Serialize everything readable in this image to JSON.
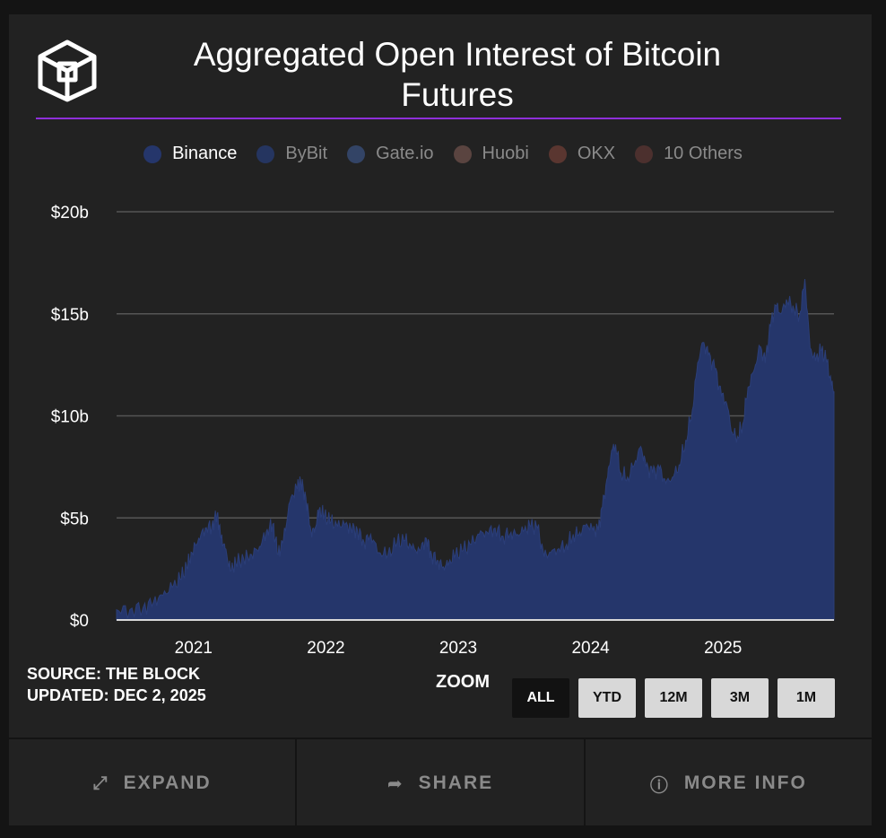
{
  "header": {
    "title_line1": "Aggregated Open Interest of Bitcoin",
    "title_line2": "Futures"
  },
  "legend": [
    {
      "label": "Binance",
      "color": "#25366b",
      "text_color": "#ffffff"
    },
    {
      "label": "ByBit",
      "color": "#253560",
      "text_color": "#8a8a8a"
    },
    {
      "label": "Gate.io",
      "color": "#334466",
      "text_color": "#8a8a8a"
    },
    {
      "label": "Huobi",
      "color": "#5a4440",
      "text_color": "#8a8a8a"
    },
    {
      "label": "OKX",
      "color": "#5a3630",
      "text_color": "#8a8a8a"
    },
    {
      "label": "10 Others",
      "color": "#4c302e",
      "text_color": "#8a8a8a"
    }
  ],
  "chart_data": {
    "type": "area",
    "title": "Aggregated Open Interest of Bitcoin Futures",
    "series_name": "Binance",
    "series_color": "#25366b",
    "y_ticks": [
      "$0",
      "$5b",
      "$10b",
      "$15b",
      "$20b"
    ],
    "ylim": [
      0,
      20
    ],
    "y_unit": "billions USD",
    "x_ticks": [
      "2021",
      "2022",
      "2023",
      "2024",
      "2025"
    ],
    "x_tick_values": [
      2021.0,
      2022.0,
      2023.0,
      2024.0,
      2025.0
    ],
    "xlim": [
      2020.5,
      2025.92
    ],
    "grid": true,
    "points": [
      [
        2020.5,
        0.5
      ],
      [
        2020.6,
        0.5
      ],
      [
        2020.7,
        0.6
      ],
      [
        2020.78,
        0.9
      ],
      [
        2020.85,
        1.2
      ],
      [
        2020.92,
        1.6
      ],
      [
        2020.98,
        2.0
      ],
      [
        2021.03,
        2.6
      ],
      [
        2021.07,
        3.3
      ],
      [
        2021.12,
        4.0
      ],
      [
        2021.17,
        4.5
      ],
      [
        2021.22,
        4.6
      ],
      [
        2021.26,
        5.2
      ],
      [
        2021.29,
        4.0
      ],
      [
        2021.32,
        3.5
      ],
      [
        2021.36,
        2.4
      ],
      [
        2021.4,
        2.8
      ],
      [
        2021.46,
        3.0
      ],
      [
        2021.52,
        3.2
      ],
      [
        2021.58,
        3.6
      ],
      [
        2021.63,
        4.3
      ],
      [
        2021.68,
        4.7
      ],
      [
        2021.72,
        3.2
      ],
      [
        2021.76,
        3.9
      ],
      [
        2021.81,
        5.8
      ],
      [
        2021.86,
        6.5
      ],
      [
        2021.89,
        6.8
      ],
      [
        2021.93,
        6.0
      ],
      [
        2021.97,
        4.3
      ],
      [
        2022.0,
        4.5
      ],
      [
        2022.03,
        5.4
      ],
      [
        2022.07,
        5.1
      ],
      [
        2022.12,
        4.8
      ],
      [
        2022.17,
        4.6
      ],
      [
        2022.22,
        4.7
      ],
      [
        2022.27,
        4.5
      ],
      [
        2022.32,
        4.4
      ],
      [
        2022.37,
        3.8
      ],
      [
        2022.42,
        4.2
      ],
      [
        2022.48,
        3.3
      ],
      [
        2022.55,
        3.2
      ],
      [
        2022.62,
        3.8
      ],
      [
        2022.68,
        3.9
      ],
      [
        2022.73,
        3.5
      ],
      [
        2022.79,
        3.4
      ],
      [
        2022.84,
        4.0
      ],
      [
        2022.88,
        3.2
      ],
      [
        2022.93,
        2.9
      ],
      [
        2022.97,
        2.6
      ],
      [
        2023.01,
        2.8
      ],
      [
        2023.06,
        3.2
      ],
      [
        2023.12,
        3.4
      ],
      [
        2023.18,
        3.7
      ],
      [
        2023.24,
        4.2
      ],
      [
        2023.3,
        4.3
      ],
      [
        2023.36,
        4.5
      ],
      [
        2023.42,
        4.1
      ],
      [
        2023.48,
        4.3
      ],
      [
        2023.53,
        4.2
      ],
      [
        2023.58,
        4.4
      ],
      [
        2023.63,
        4.6
      ],
      [
        2023.68,
        4.5
      ],
      [
        2023.73,
        3.1
      ],
      [
        2023.78,
        3.3
      ],
      [
        2023.84,
        3.5
      ],
      [
        2023.9,
        3.7
      ],
      [
        2023.95,
        4.2
      ],
      [
        2024.0,
        4.3
      ],
      [
        2024.05,
        4.7
      ],
      [
        2024.1,
        4.4
      ],
      [
        2024.14,
        4.4
      ],
      [
        2024.17,
        5.5
      ],
      [
        2024.21,
        7.0
      ],
      [
        2024.24,
        8.3
      ],
      [
        2024.27,
        8.6
      ],
      [
        2024.31,
        7.2
      ],
      [
        2024.36,
        7.0
      ],
      [
        2024.42,
        7.8
      ],
      [
        2024.46,
        8.5
      ],
      [
        2024.5,
        7.5
      ],
      [
        2024.55,
        7.2
      ],
      [
        2024.6,
        7.4
      ],
      [
        2024.65,
        6.7
      ],
      [
        2024.7,
        7.0
      ],
      [
        2024.75,
        7.6
      ],
      [
        2024.8,
        8.8
      ],
      [
        2024.85,
        10.3
      ],
      [
        2024.89,
        12.6
      ],
      [
        2024.93,
        13.6
      ],
      [
        2024.97,
        13.0
      ],
      [
        2025.02,
        12.3
      ],
      [
        2025.07,
        11.0
      ],
      [
        2025.11,
        10.6
      ],
      [
        2025.15,
        9.2
      ],
      [
        2025.19,
        9.0
      ],
      [
        2025.23,
        9.6
      ],
      [
        2025.27,
        11.4
      ],
      [
        2025.32,
        12.3
      ],
      [
        2025.36,
        13.4
      ],
      [
        2025.4,
        12.6
      ],
      [
        2025.44,
        14.4
      ],
      [
        2025.48,
        15.4
      ],
      [
        2025.52,
        15.0
      ],
      [
        2025.56,
        15.7
      ],
      [
        2025.61,
        15.4
      ],
      [
        2025.66,
        14.9
      ],
      [
        2025.7,
        16.7
      ],
      [
        2025.74,
        13.3
      ],
      [
        2025.78,
        12.7
      ],
      [
        2025.82,
        13.2
      ],
      [
        2025.86,
        12.8
      ],
      [
        2025.9,
        11.6
      ],
      [
        2025.92,
        11.2
      ]
    ]
  },
  "source": {
    "line1": "SOURCE: THE BLOCK",
    "line2": "UPDATED: DEC 2, 2025"
  },
  "zoom": {
    "label": "ZOOM",
    "buttons": [
      "ALL",
      "YTD",
      "12M",
      "3M",
      "1M"
    ],
    "active": "ALL"
  },
  "footer": {
    "expand": {
      "label": "EXPAND",
      "icon": "expand-arrows-icon"
    },
    "share": {
      "label": "SHARE",
      "icon": "share-arrow-icon"
    },
    "more_info": {
      "label": "MORE INFO",
      "icon": "info-circle-icon"
    }
  }
}
